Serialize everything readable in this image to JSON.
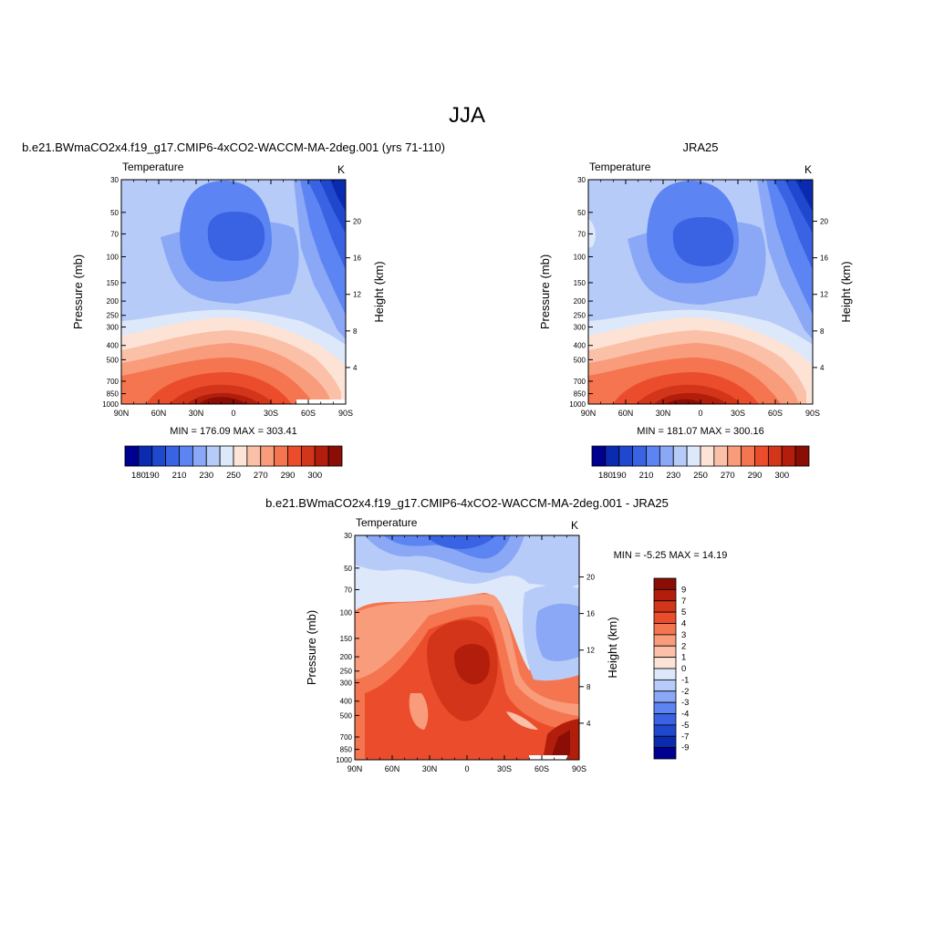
{
  "main_title": "JJA",
  "panels": [
    {
      "id": "model",
      "title": "b.e21.BWmaCO2x4.f19_g17.CMIP6-4xCO2-WACCM-MA-2deg.001 (yrs 71-110)",
      "variable": "Temperature",
      "units": "K",
      "ylabel": "Pressure (mb)",
      "ylabel_right": "Height (km)",
      "stats": "MIN = 176.09  MAX = 303.41"
    },
    {
      "id": "obs",
      "title": "JRA25",
      "variable": "Temperature",
      "units": "K",
      "ylabel": "Pressure (mb)",
      "ylabel_right": "Height (km)",
      "stats": "MIN = 181.07  MAX = 300.16"
    },
    {
      "id": "diff",
      "title": "b.e21.BWmaCO2x4.f19_g17.CMIP6-4xCO2-WACCM-MA-2deg.001 - JRA25",
      "variable": "Temperature",
      "units": "K",
      "ylabel": "Pressure (mb)",
      "ylabel_right": "Height (km)",
      "stats": "MIN =  -5.25  MAX =  14.19"
    }
  ],
  "colorbar_temp": {
    "labels": [
      "180",
      "190",
      "210",
      "230",
      "250",
      "270",
      "290",
      "300"
    ],
    "colors": [
      "#000090",
      "#0a2bb0",
      "#1f48cf",
      "#3a63e4",
      "#5c84f2",
      "#8aa8f6",
      "#b6cbf8",
      "#dde8fb",
      "#fde3d6",
      "#fbc1a8",
      "#f89c7c",
      "#f4754f",
      "#eb4d2c",
      "#d23519",
      "#b31e0c",
      "#8a0e06"
    ]
  },
  "colorbar_diff": {
    "labels": [
      "9",
      "7",
      "5",
      "4",
      "3",
      "2",
      "1",
      "0",
      "-1",
      "-2",
      "-3",
      "-4",
      "-5",
      "-7",
      "-9"
    ],
    "colors": [
      "#8a0e06",
      "#b31e0c",
      "#d23519",
      "#eb4d2c",
      "#f4754f",
      "#f89c7c",
      "#fbc1a8",
      "#fde3d6",
      "#dde8fb",
      "#b6cbf8",
      "#8aa8f6",
      "#5c84f2",
      "#3a63e4",
      "#1f48cf",
      "#0a2bb0",
      "#000090"
    ]
  },
  "chart_data": [
    {
      "type": "heatmap",
      "title": "b.e21.BWmaCO2x4.f19_g17.CMIP6-4xCO2-WACCM-MA-2deg.001 (yrs 71-110)",
      "variable": "Temperature",
      "units": "K",
      "xlabel": "",
      "ylabel": "Pressure (mb)",
      "ylabel_right": "Height (km)",
      "x_ticks": [
        "90N",
        "60N",
        "30N",
        "0",
        "30S",
        "60S",
        "90S"
      ],
      "y_ticks": [
        30,
        50,
        70,
        100,
        150,
        200,
        250,
        300,
        400,
        500,
        700,
        850,
        1000
      ],
      "y_right_ticks": [
        4,
        8,
        12,
        16,
        20
      ],
      "y_scale": "log",
      "y_reversed": true,
      "min": 176.09,
      "max": 303.41
    },
    {
      "type": "heatmap",
      "title": "JRA25",
      "variable": "Temperature",
      "units": "K",
      "xlabel": "",
      "ylabel": "Pressure (mb)",
      "ylabel_right": "Height (km)",
      "x_ticks": [
        "90N",
        "60N",
        "30N",
        "0",
        "30S",
        "60S",
        "90S"
      ],
      "y_ticks": [
        30,
        50,
        70,
        100,
        150,
        200,
        250,
        300,
        400,
        500,
        700,
        850,
        1000
      ],
      "y_right_ticks": [
        4,
        8,
        12,
        16,
        20
      ],
      "y_scale": "log",
      "y_reversed": true,
      "min": 181.07,
      "max": 300.16
    },
    {
      "type": "heatmap",
      "title": "b.e21.BWmaCO2x4.f19_g17.CMIP6-4xCO2-WACCM-MA-2deg.001 - JRA25",
      "variable": "Temperature",
      "units": "K",
      "xlabel": "",
      "ylabel": "Pressure (mb)",
      "ylabel_right": "Height (km)",
      "x_ticks": [
        "90N",
        "60N",
        "30N",
        "0",
        "30S",
        "60S",
        "90S"
      ],
      "y_ticks": [
        30,
        50,
        70,
        100,
        150,
        200,
        250,
        300,
        400,
        500,
        700,
        850,
        1000
      ],
      "y_right_ticks": [
        4,
        8,
        12,
        16,
        20
      ],
      "y_scale": "log",
      "y_reversed": true,
      "min": -5.25,
      "max": 14.19
    }
  ]
}
